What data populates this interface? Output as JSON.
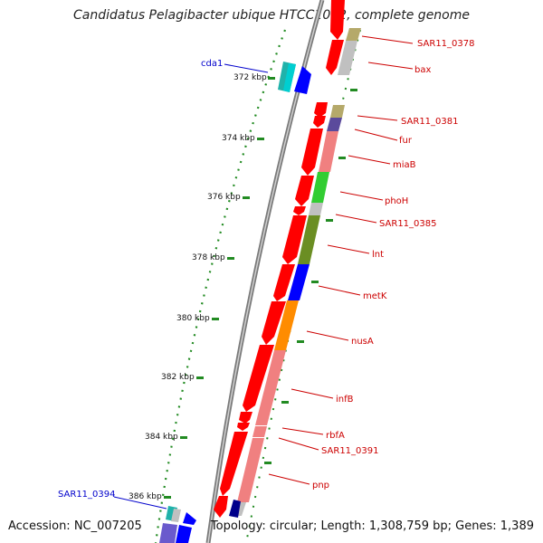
{
  "title": "Candidatus Pelagibacter ubique HTCC1062, complete genome",
  "accession": "Accession: NC_007205",
  "topology": "Topology: circular; Length: 1,308,759 bp; Genes: 1,389",
  "colors": {
    "forward_gene": "#ff0000",
    "backward_gene": "#0000ff",
    "label_right": "#cc0000",
    "label_left": "#0000cc",
    "tick": "#006400",
    "backbone": "#808080"
  },
  "ticks": [
    {
      "label": "372 kbp"
    },
    {
      "label": "374 kbp"
    },
    {
      "label": "376 kbp"
    },
    {
      "label": "378 kbp"
    },
    {
      "label": "380 kbp"
    },
    {
      "label": "382 kbp"
    },
    {
      "label": "384 kbp"
    },
    {
      "label": "386 kbp"
    }
  ],
  "gene_labels": [
    {
      "name": "SAR11_0378"
    },
    {
      "name": "bax"
    },
    {
      "name": "cda1"
    },
    {
      "name": "SAR11_0381"
    },
    {
      "name": "fur"
    },
    {
      "name": "miaB"
    },
    {
      "name": "phoH"
    },
    {
      "name": "SAR11_0385"
    },
    {
      "name": "lnt"
    },
    {
      "name": "metK"
    },
    {
      "name": "nusA"
    },
    {
      "name": "infB"
    },
    {
      "name": "rbfA"
    },
    {
      "name": "SAR11_0391"
    },
    {
      "name": "pnp"
    },
    {
      "name": "SAR11_0394"
    }
  ],
  "cog_colors": [
    "#b5a96a",
    "#c0c0c0",
    "#5b4a9c",
    "#f08080",
    "#32cd32",
    "#c0c0c0",
    "#6b8e23",
    "#0000ff",
    "#ff8c00",
    "#f08080",
    "#f08080",
    "#f08080",
    "#20b2aa",
    "#00008b"
  ]
}
